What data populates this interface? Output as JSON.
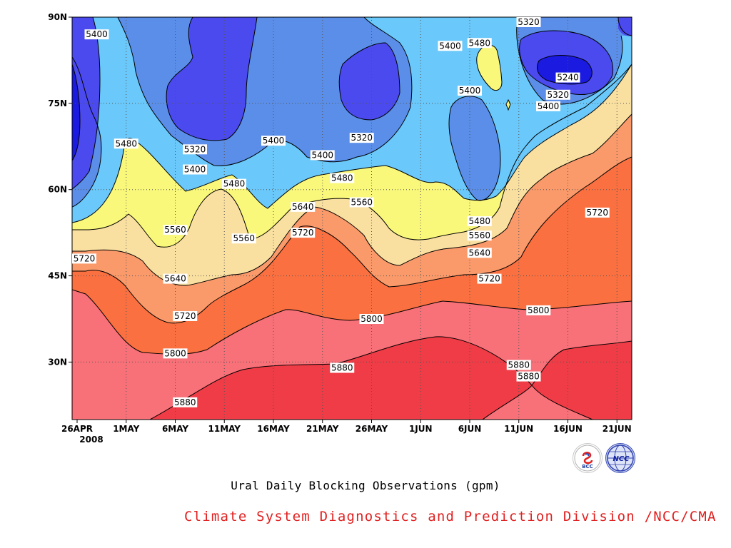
{
  "chart_data": {
    "type": "contour-filled",
    "x_ticks": [
      "26APR",
      "1MAY",
      "6MAY",
      "11MAY",
      "16MAY",
      "21MAY",
      "26MAY",
      "1JUN",
      "6JUN",
      "11JUN",
      "16JUN",
      "21JUN"
    ],
    "x_year": "2008",
    "y_ticks": [
      "30N",
      "45N",
      "60N",
      "75N",
      "90N"
    ],
    "y_values": [
      30,
      45,
      60,
      75,
      90
    ],
    "ylim": [
      20,
      90
    ],
    "x_range": [
      "2008-04-26",
      "2008-06-21"
    ],
    "contour_levels": [
      5240,
      5320,
      5400,
      5480,
      5560,
      5640,
      5720,
      5800,
      5880
    ],
    "fill_colors": [
      "#1a1ae0",
      "#4a4aee",
      "#5a8ee8",
      "#6ac8fa",
      "#faf87a",
      "#fae0a0",
      "#fa9a6a",
      "#fa7040",
      "#f87078",
      "#f03c46"
    ],
    "grid": true,
    "contour_labels": [
      {
        "value": "5400",
        "date": "2008-04-28",
        "lat": 87
      },
      {
        "value": "5480",
        "date": "2008-05-01",
        "lat": 68
      },
      {
        "value": "5320",
        "date": "2008-05-08",
        "lat": 67
      },
      {
        "value": "5400",
        "date": "2008-05-08",
        "lat": 63.5
      },
      {
        "value": "5480",
        "date": "2008-05-12",
        "lat": 61
      },
      {
        "value": "5560",
        "date": "2008-05-06",
        "lat": 53
      },
      {
        "value": "5640",
        "date": "2008-05-06",
        "lat": 44.5
      },
      {
        "value": "5720",
        "date": "2008-05-07",
        "lat": 38
      },
      {
        "value": "5800",
        "date": "2008-05-06",
        "lat": 31.5
      },
      {
        "value": "5880",
        "date": "2008-05-07",
        "lat": 23
      },
      {
        "value": "5720",
        "date": "2008-04-26",
        "lat": 48
      },
      {
        "value": "5560",
        "date": "2008-05-13",
        "lat": 51.5
      },
      {
        "value": "5400",
        "date": "2008-05-16",
        "lat": 68.5
      },
      {
        "value": "5400",
        "date": "2008-05-21",
        "lat": 66
      },
      {
        "value": "5480",
        "date": "2008-05-23",
        "lat": 62
      },
      {
        "value": "5640",
        "date": "2008-05-19",
        "lat": 57
      },
      {
        "value": "5720",
        "date": "2008-05-19",
        "lat": 52.5
      },
      {
        "value": "5560",
        "date": "2008-05-25",
        "lat": 57.8
      },
      {
        "value": "5320",
        "date": "2008-05-25",
        "lat": 69
      },
      {
        "value": "5800",
        "date": "2008-05-26",
        "lat": 37.5
      },
      {
        "value": "5880",
        "date": "2008-05-23",
        "lat": 29
      },
      {
        "value": "5400",
        "date": "2008-06-03",
        "lat": 85
      },
      {
        "value": "5480",
        "date": "2008-06-06",
        "lat": 85.5
      },
      {
        "value": "5400",
        "date": "2008-06-05",
        "lat": 77.2
      },
      {
        "value": "5480",
        "date": "2008-06-06",
        "lat": 54.5
      },
      {
        "value": "5560",
        "date": "2008-06-06",
        "lat": 52
      },
      {
        "value": "5640",
        "date": "2008-06-06",
        "lat": 49
      },
      {
        "value": "5720",
        "date": "2008-06-07",
        "lat": 44.5
      },
      {
        "value": "5800",
        "date": "2008-06-12",
        "lat": 39
      },
      {
        "value": "5880",
        "date": "2008-06-10",
        "lat": 29.5
      },
      {
        "value": "5880",
        "date": "2008-06-11",
        "lat": 27.5
      },
      {
        "value": "5320",
        "date": "2008-06-11",
        "lat": 89.5
      },
      {
        "value": "5240",
        "date": "2008-06-15",
        "lat": 79.5
      },
      {
        "value": "5320",
        "date": "2008-06-14",
        "lat": 76.5
      },
      {
        "value": "5400",
        "date": "2008-06-13",
        "lat": 74.5
      },
      {
        "value": "5720",
        "date": "2008-06-18",
        "lat": 56
      }
    ]
  },
  "caption": {
    "title": "Ural Daily Blocking Observations (gpm)",
    "credit": "Climate System Diagnostics and Prediction Division /NCC/CMA",
    "credit_color": "#e02020"
  },
  "logos": {
    "bcc_text": "BCC",
    "ncc_text": "NCC",
    "bcc_icon": "bcc-logo",
    "ncc_icon": "ncc-globe-logo"
  }
}
